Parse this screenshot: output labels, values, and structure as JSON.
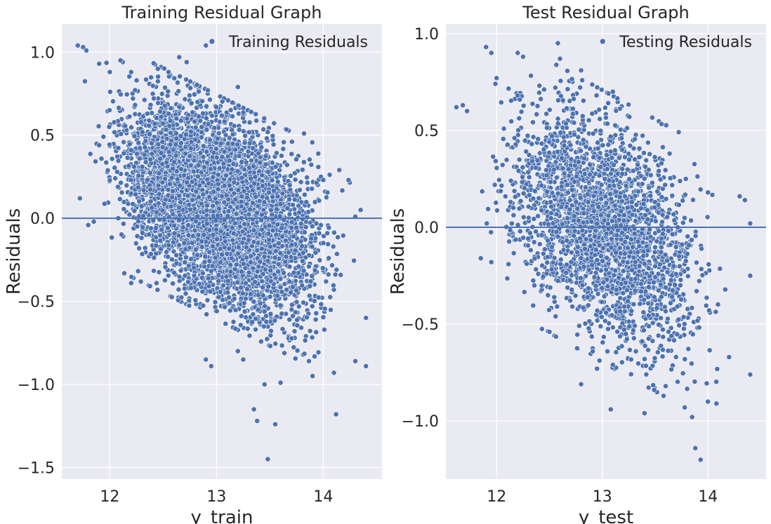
{
  "colors": {
    "axes_bg": "#eaeaf2",
    "grid": "#ffffff",
    "marker": "#4c72b0",
    "marker_edge": "#ffffff",
    "text": "#262626",
    "zero_line": "#4c72b0"
  },
  "chart_data": [
    {
      "type": "scatter",
      "title": "Training Residual Graph",
      "xlabel": "y_train",
      "ylabel": "Residuals",
      "xlim": [
        11.55,
        14.55
      ],
      "ylim": [
        -1.57,
        1.17
      ],
      "xticks": [
        12,
        13,
        14
      ],
      "xtick_labels": [
        "12",
        "13",
        "14"
      ],
      "yticks": [
        1.0,
        0.5,
        0.0,
        -0.5,
        -1.0,
        -1.5
      ],
      "ytick_labels": [
        "1.0",
        "0.5",
        "0.0",
        "−0.5",
        "−1.0",
        "−1.5"
      ],
      "legend": {
        "label": "Training Residuals",
        "position": "top-right"
      },
      "hline_y": 0,
      "grid": true,
      "approx_point_count": 6000,
      "cloud_model": {
        "x_range": [
          11.65,
          14.42
        ],
        "mean_at_xmin": 0.5,
        "slope": -0.32,
        "spread": 0.26
      },
      "points": [
        [
          11.7,
          1.04
        ],
        [
          11.75,
          1.03
        ],
        [
          11.78,
          1.01
        ],
        [
          11.9,
          0.93
        ],
        [
          12.0,
          0.88
        ],
        [
          12.1,
          0.95
        ],
        [
          12.2,
          0.88
        ],
        [
          12.45,
          0.9
        ],
        [
          12.55,
          0.88
        ],
        [
          12.65,
          0.97
        ],
        [
          12.72,
          0.94
        ],
        [
          12.9,
          1.04
        ],
        [
          13.2,
          0.79
        ],
        [
          13.82,
          0.51
        ],
        [
          14.15,
          0.29
        ],
        [
          11.72,
          0.12
        ],
        [
          11.85,
          -0.02
        ],
        [
          12.2,
          -0.39
        ],
        [
          12.9,
          -0.85
        ],
        [
          12.95,
          -0.89
        ],
        [
          13.2,
          -0.8
        ],
        [
          13.25,
          -0.85
        ],
        [
          13.35,
          -1.15
        ],
        [
          13.38,
          -1.22
        ],
        [
          13.45,
          -1.0
        ],
        [
          13.48,
          -1.45
        ],
        [
          13.55,
          -1.24
        ],
        [
          13.6,
          -0.99
        ],
        [
          13.9,
          -0.95
        ],
        [
          14.1,
          -0.93
        ],
        [
          14.12,
          -1.18
        ],
        [
          14.3,
          -0.86
        ],
        [
          14.4,
          -0.89
        ],
        [
          14.4,
          -0.6
        ],
        [
          14.3,
          0.01
        ],
        [
          14.0,
          0.23
        ],
        [
          14.35,
          0.05
        ]
      ]
    },
    {
      "type": "scatter",
      "title": "Test Residual Graph",
      "xlabel": "y_test",
      "ylabel": "Residuals",
      "xlim": [
        11.52,
        14.55
      ],
      "ylim": [
        -1.3,
        1.05
      ],
      "xticks": [
        12,
        13,
        14
      ],
      "xtick_labels": [
        "12",
        "13",
        "14"
      ],
      "yticks": [
        1.0,
        0.5,
        0.0,
        -0.5,
        -1.0
      ],
      "ytick_labels": [
        "1.0",
        "0.5",
        "0.0",
        "−0.5",
        "−1.0"
      ],
      "legend": {
        "label": "Testing Residuals",
        "position": "top-right"
      },
      "hline_y": 0,
      "grid": true,
      "approx_point_count": 2600,
      "cloud_model": {
        "x_range": [
          11.62,
          14.42
        ],
        "mean_at_xmin": 0.42,
        "slope": -0.3,
        "spread": 0.27
      },
      "points": [
        [
          11.62,
          0.62
        ],
        [
          11.68,
          0.63
        ],
        [
          11.72,
          0.6
        ],
        [
          11.9,
          0.93
        ],
        [
          11.95,
          0.9
        ],
        [
          12.0,
          0.77
        ],
        [
          12.2,
          0.9
        ],
        [
          12.25,
          0.88
        ],
        [
          12.58,
          0.95
        ],
        [
          12.6,
          0.87
        ],
        [
          13.0,
          0.96
        ],
        [
          12.8,
          0.81
        ],
        [
          13.1,
          0.7
        ],
        [
          11.85,
          -0.16
        ],
        [
          11.95,
          -0.18
        ],
        [
          12.5,
          -0.54
        ],
        [
          12.8,
          -0.81
        ],
        [
          12.95,
          -0.73
        ],
        [
          13.08,
          -0.94
        ],
        [
          13.1,
          -0.71
        ],
        [
          13.4,
          -0.96
        ],
        [
          13.6,
          -0.82
        ],
        [
          13.78,
          -0.93
        ],
        [
          13.85,
          -0.98
        ],
        [
          13.88,
          -1.14
        ],
        [
          13.93,
          -1.2
        ],
        [
          14.0,
          -0.9
        ],
        [
          14.08,
          -0.91
        ],
        [
          14.2,
          -0.67
        ],
        [
          14.4,
          -0.76
        ],
        [
          14.35,
          0.14
        ],
        [
          14.4,
          0.02
        ],
        [
          14.0,
          0.18
        ],
        [
          14.3,
          0.16
        ],
        [
          14.4,
          -0.25
        ]
      ]
    }
  ]
}
